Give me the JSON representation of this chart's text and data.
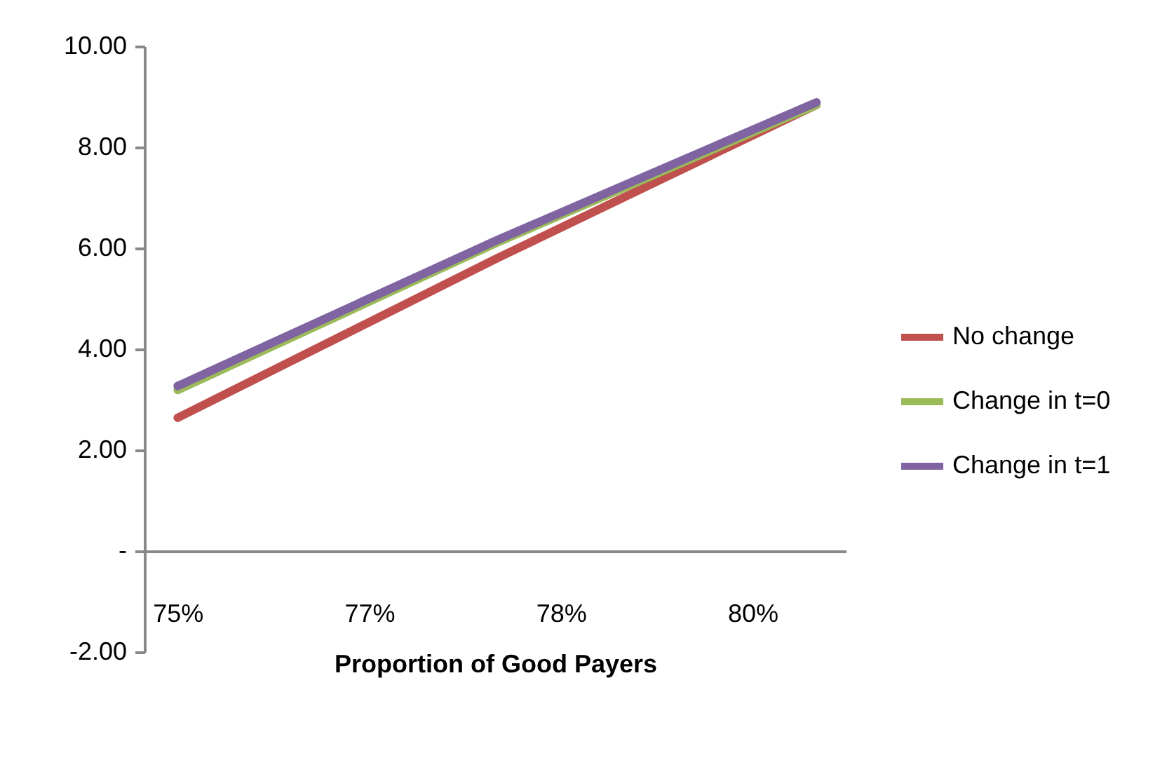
{
  "chart_data": {
    "type": "line",
    "xlabel": "Proportion of Good Payers",
    "x": [
      75,
      77.5,
      80
    ],
    "xlim": [
      74.74,
      80.23
    ],
    "xticks": [
      {
        "value": 75,
        "label": "75%"
      },
      {
        "value": 76.5,
        "label": "77%"
      },
      {
        "value": 78,
        "label": "78%"
      },
      {
        "value": 79.5,
        "label": "80%"
      }
    ],
    "ylim": [
      -2,
      10
    ],
    "yticks": [
      {
        "value": -2,
        "label": "-2.00"
      },
      {
        "value": 0,
        "label": "-"
      },
      {
        "value": 2,
        "label": "2.00"
      },
      {
        "value": 4,
        "label": "4.00"
      },
      {
        "value": 6,
        "label": "6.00"
      },
      {
        "value": 8,
        "label": "8.00"
      },
      {
        "value": 10,
        "label": "10.00"
      }
    ],
    "series": [
      {
        "name": "No change",
        "color": "#c0504d",
        "values": [
          2.64,
          5.8,
          8.84
        ]
      },
      {
        "name": "Change in t=0",
        "color": "#9bbb59",
        "values": [
          3.19,
          6.11,
          8.84
        ]
      },
      {
        "name": "Change in t=1",
        "color": "#8064a2",
        "values": [
          3.27,
          6.16,
          8.89
        ]
      }
    ],
    "legend": "right",
    "grid": false,
    "marker": "none",
    "line_style": "solid"
  }
}
